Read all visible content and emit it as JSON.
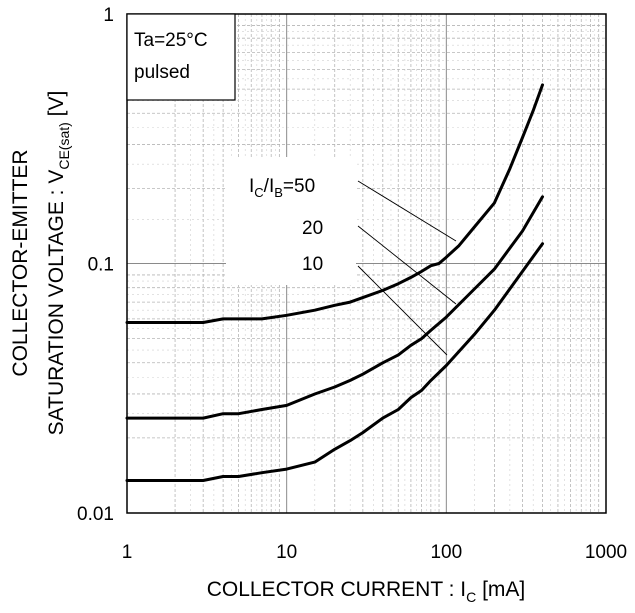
{
  "chart_data": {
    "type": "line",
    "xscale": "log",
    "yscale": "log",
    "xlim": [
      1,
      1000
    ],
    "ylim": [
      0.01,
      1
    ],
    "grid": true,
    "xlabel_main": "COLLECTOR CURRENT : I",
    "xlabel_sub": "C",
    "xlabel_unit": " [mA]",
    "ylabel_line1": "COLLECTOR-EMITTER",
    "ylabel_line2_main": "SATURATION VOLTAGE : V",
    "ylabel_line2_sub": "CE(sat)",
    "ylabel_line2_unit": " [V]",
    "x_ticks": [
      {
        "value": 1,
        "label": "1"
      },
      {
        "value": 10,
        "label": "10"
      },
      {
        "value": 100,
        "label": "100"
      },
      {
        "value": 1000,
        "label": "1000"
      }
    ],
    "y_ticks": [
      {
        "value": 0.01,
        "label": "0.01"
      },
      {
        "value": 0.1,
        "label": "0.1"
      },
      {
        "value": 1,
        "label": "1"
      }
    ],
    "condition_line1": "Ta=25°C",
    "condition_line2": "pulsed",
    "annotation_ratio_I": "I",
    "annotation_ratio_sub1": "C",
    "annotation_ratio_mid": "/I",
    "annotation_ratio_sub2": "B",
    "annotation_ratio_eq": "=50",
    "series": [
      {
        "name": "50",
        "label": "=50",
        "x": [
          1,
          2,
          3,
          4,
          5,
          7,
          10,
          15,
          20,
          25,
          30,
          40,
          50,
          60,
          70,
          80,
          90,
          100,
          120,
          150,
          200,
          250,
          300,
          350,
          400
        ],
        "y": [
          0.058,
          0.058,
          0.058,
          0.06,
          0.06,
          0.06,
          0.062,
          0.065,
          0.068,
          0.07,
          0.073,
          0.078,
          0.083,
          0.088,
          0.093,
          0.098,
          0.1,
          0.106,
          0.118,
          0.14,
          0.175,
          0.24,
          0.32,
          0.41,
          0.52
        ]
      },
      {
        "name": "20",
        "label": "20",
        "x": [
          1,
          2,
          3,
          4,
          5,
          7,
          10,
          15,
          20,
          25,
          30,
          40,
          50,
          60,
          70,
          80,
          100,
          150,
          200,
          300,
          400
        ],
        "y": [
          0.024,
          0.024,
          0.024,
          0.025,
          0.025,
          0.026,
          0.027,
          0.03,
          0.032,
          0.034,
          0.036,
          0.04,
          0.043,
          0.047,
          0.05,
          0.054,
          0.061,
          0.079,
          0.095,
          0.135,
          0.185
        ]
      },
      {
        "name": "10",
        "label": "10",
        "x": [
          1,
          2,
          3,
          4,
          5,
          7,
          10,
          15,
          20,
          25,
          30,
          40,
          50,
          60,
          70,
          80,
          100,
          150,
          200,
          300,
          400
        ],
        "y": [
          0.0135,
          0.0135,
          0.0135,
          0.014,
          0.014,
          0.0145,
          0.015,
          0.016,
          0.018,
          0.0195,
          0.021,
          0.024,
          0.026,
          0.029,
          0.031,
          0.034,
          0.039,
          0.052,
          0.065,
          0.093,
          0.12
        ]
      }
    ]
  }
}
